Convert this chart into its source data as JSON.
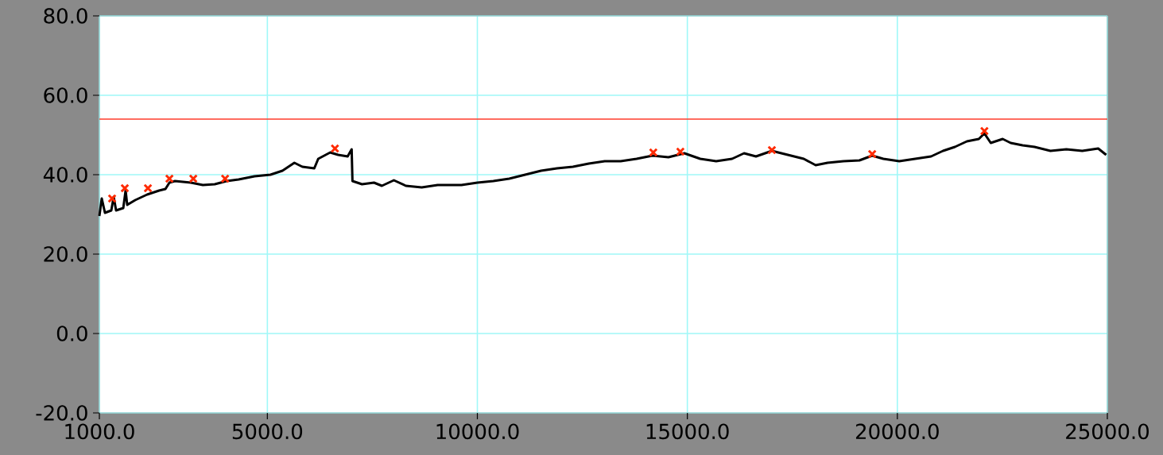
{
  "chart_data": {
    "type": "line",
    "xlim": [
      1000,
      25000
    ],
    "ylim": [
      -20,
      80
    ],
    "xticks": [
      {
        "value": 1000,
        "label": "1000.0"
      },
      {
        "value": 5000,
        "label": "5000.0"
      },
      {
        "value": 10000,
        "label": "10000.0"
      },
      {
        "value": 15000,
        "label": "15000.0"
      },
      {
        "value": 20000,
        "label": "20000.0"
      },
      {
        "value": 25000,
        "label": "25000.0"
      }
    ],
    "yticks": [
      {
        "value": -20,
        "label": "-20.0"
      },
      {
        "value": 0,
        "label": "0.0"
      },
      {
        "value": 20,
        "label": "20.0"
      },
      {
        "value": 40,
        "label": "40.0"
      },
      {
        "value": 60,
        "label": "60.0"
      },
      {
        "value": 80,
        "label": "80.0"
      }
    ],
    "grid": true,
    "series": [
      {
        "color": "#000000",
        "x": [
          1000,
          1057,
          1133,
          1284,
          1341,
          1398,
          1569,
          1625,
          1663,
          1853,
          2137,
          2421,
          2573,
          2668,
          2800,
          3179,
          3464,
          3748,
          4032,
          4316,
          4695,
          5074,
          5359,
          5643,
          5832,
          6117,
          6211,
          6496,
          6685,
          6912,
          7007,
          7026,
          7254,
          7538,
          7727,
          8012,
          8296,
          8675,
          9054,
          9622,
          10001,
          10380,
          10759,
          11138,
          11517,
          11896,
          12275,
          12654,
          13033,
          13412,
          13791,
          14170,
          14549,
          14928,
          15307,
          15686,
          16065,
          16350,
          16634,
          17013,
          17392,
          17771,
          18055,
          18339,
          18718,
          19097,
          19400,
          19666,
          20045,
          20424,
          20803,
          21087,
          21371,
          21656,
          21940,
          22072,
          22224,
          22508,
          22698,
          22982,
          23266,
          23645,
          24024,
          24403,
          24782,
          24972
        ],
        "values": [
          29.6,
          34.0,
          30.4,
          31.0,
          34.4,
          31.0,
          31.6,
          36.0,
          32.4,
          33.6,
          35.0,
          36.0,
          36.4,
          38.0,
          38.4,
          38.0,
          37.4,
          37.6,
          38.4,
          38.8,
          39.6,
          40.0,
          41.0,
          43.0,
          42.0,
          41.6,
          44.0,
          45.6,
          45.0,
          44.6,
          46.4,
          38.4,
          37.6,
          38.0,
          37.2,
          38.6,
          37.2,
          36.8,
          37.4,
          37.4,
          38.0,
          38.4,
          39.0,
          40.0,
          41.0,
          41.6,
          42.0,
          42.8,
          43.4,
          43.4,
          44.0,
          44.8,
          44.4,
          45.4,
          44.0,
          43.4,
          44.0,
          45.4,
          44.6,
          46.0,
          45.0,
          44.0,
          42.4,
          43.0,
          43.4,
          43.6,
          44.8,
          44.0,
          43.4,
          44.0,
          44.6,
          46.0,
          47.0,
          48.4,
          49.0,
          50.4,
          48.0,
          49.0,
          48.0,
          47.4,
          47.0,
          46.0,
          46.4,
          46.0,
          46.6,
          45.0
        ]
      },
      {
        "type": "scatter",
        "color": "#ff2a00",
        "marker": "cross",
        "x": [
          1303,
          1606,
          2156,
          2668,
          3236,
          3994,
          6609,
          14189,
          14834,
          17013,
          19401,
          22073
        ],
        "values": [
          34.0,
          36.6,
          36.6,
          39.0,
          39.0,
          39.0,
          46.6,
          45.6,
          45.8,
          46.2,
          45.2,
          51.0
        ]
      }
    ],
    "ref_lines": [
      {
        "axis": "y",
        "value": 54,
        "color": "#ff3b2a"
      }
    ]
  }
}
